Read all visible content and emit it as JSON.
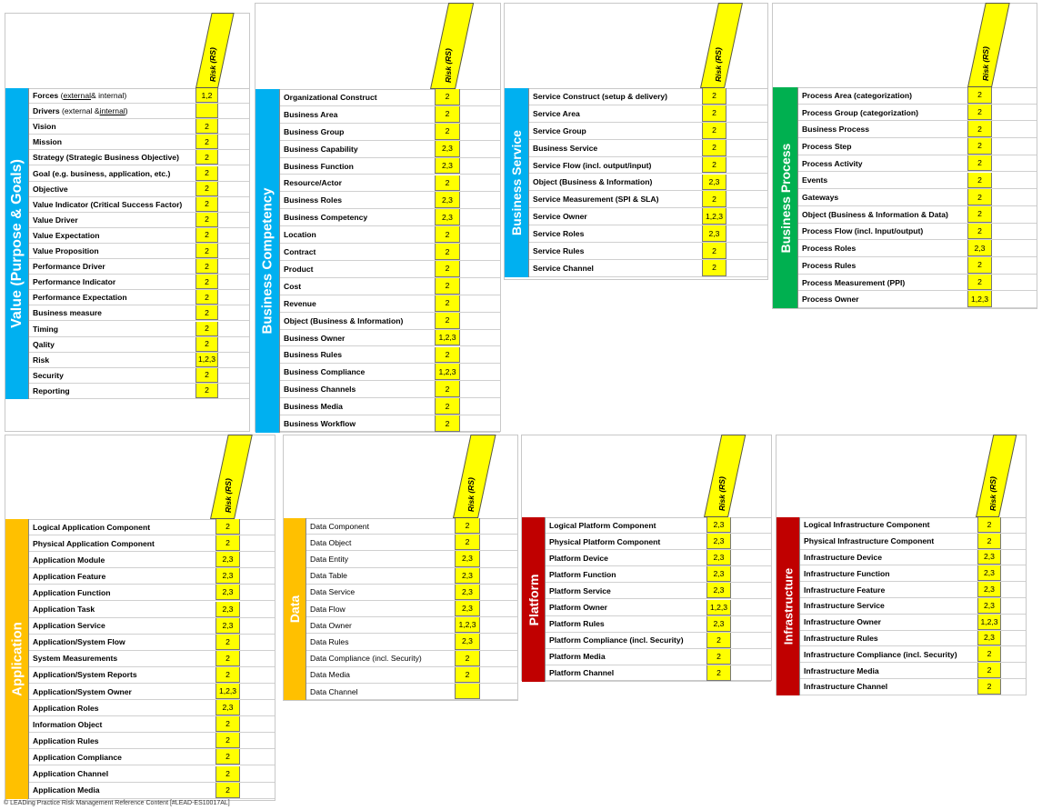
{
  "risk_label": "Risk (RS)",
  "footer": "© LEADing Practice Risk Management Reference Content [#LEAD-ES10017AL]",
  "colors": {
    "blue": "#00b0f0",
    "green": "#00b050",
    "orange": "#ffc000",
    "red": "#c00000",
    "yellow": "#ffff00"
  },
  "panels": [
    {
      "id": "value",
      "title": "Value (Purpose & Goals)",
      "color": "#00b0f0",
      "rows": [
        {
          "pre": "Forces (",
          "u": "external",
          "post": " & internal)",
          "risk": "1,2",
          "bold": true
        },
        {
          "pre": "Drivers (external & ",
          "u": "internal",
          "post": ")",
          "risk": "",
          "bold": true
        },
        {
          "name": "Vision",
          "risk": "2"
        },
        {
          "name": "Mission",
          "risk": "2"
        },
        {
          "name": "Strategy (Strategic Business Objective)",
          "risk": "2"
        },
        {
          "name": "Goal (e.g. business, application, etc.)",
          "risk": "2"
        },
        {
          "name": "Objective",
          "risk": "2"
        },
        {
          "name": "Value Indicator (Critical Success Factor)",
          "risk": "2"
        },
        {
          "name": "Value Driver",
          "risk": "2"
        },
        {
          "name": "Value Expectation",
          "risk": "2"
        },
        {
          "name": "Value Proposition",
          "risk": "2"
        },
        {
          "name": "Performance Driver",
          "risk": "2"
        },
        {
          "name": "Performance Indicator",
          "risk": "2"
        },
        {
          "name": "Performance Expectation",
          "risk": "2"
        },
        {
          "name": "Business measure",
          "risk": "2"
        },
        {
          "name": "Timing",
          "risk": "2"
        },
        {
          "name": "Qality",
          "risk": "2"
        },
        {
          "name": "Risk",
          "risk": "1,2,3"
        },
        {
          "name": "Security",
          "risk": "2"
        },
        {
          "name": "Reporting",
          "risk": "2"
        }
      ]
    },
    {
      "id": "competency",
      "title": "Business Competency",
      "color": "#00b0f0",
      "rows": [
        {
          "name": "Organizational Construct",
          "risk": "2"
        },
        {
          "name": "Business Area",
          "risk": "2"
        },
        {
          "name": "Business Group",
          "risk": "2"
        },
        {
          "name": "Business Capability",
          "risk": "2,3"
        },
        {
          "name": "Business Function",
          "risk": "2,3"
        },
        {
          "name": "Resource/Actor",
          "risk": "2"
        },
        {
          "name": "Business Roles",
          "risk": "2,3"
        },
        {
          "name": "Business Competency",
          "risk": "2,3"
        },
        {
          "name": "Location",
          "risk": "2"
        },
        {
          "name": "Contract",
          "risk": "2"
        },
        {
          "name": "Product",
          "risk": "2"
        },
        {
          "name": "Cost",
          "risk": "2"
        },
        {
          "name": "Revenue",
          "risk": "2"
        },
        {
          "name": "Object (Business & Information)",
          "risk": "2"
        },
        {
          "name": "Business Owner",
          "risk": "1,2,3"
        },
        {
          "name": "Business Rules",
          "risk": "2"
        },
        {
          "name": "Business Compliance",
          "risk": "1,2,3"
        },
        {
          "name": "Business Channels",
          "risk": "2"
        },
        {
          "name": "Business Media",
          "risk": "2"
        },
        {
          "name": "Business Workflow",
          "risk": "2"
        }
      ]
    },
    {
      "id": "service",
      "title": "Business Service",
      "color": "#00b0f0",
      "rows": [
        {
          "name": "Service Construct (setup & delivery)",
          "risk": "2"
        },
        {
          "name": "Service Area",
          "risk": "2"
        },
        {
          "name": "Service Group",
          "risk": "2"
        },
        {
          "name": "Business Service",
          "risk": "2"
        },
        {
          "name": "Service Flow (incl. output/input)",
          "risk": "2"
        },
        {
          "name": "Object (Business & Information)",
          "risk": "2,3"
        },
        {
          "name": "Service Measurement (SPI & SLA)",
          "risk": "2"
        },
        {
          "name": "Service Owner",
          "risk": "1,2,3"
        },
        {
          "name": "Service Roles",
          "risk": "2,3"
        },
        {
          "name": "Service Rules",
          "risk": "2"
        },
        {
          "name": "Service Channel",
          "risk": "2"
        }
      ]
    },
    {
      "id": "process",
      "title": "Business Process",
      "color": "#00b050",
      "rows": [
        {
          "name": "Process Area (categorization)",
          "risk": "2"
        },
        {
          "name": "Process Group (categorization)",
          "risk": "2"
        },
        {
          "name": "Business Process",
          "risk": "2"
        },
        {
          "name": "Process Step",
          "risk": "2"
        },
        {
          "name": "Process Activity",
          "risk": "2"
        },
        {
          "name": "Events",
          "risk": "2"
        },
        {
          "name": "Gateways",
          "risk": "2"
        },
        {
          "name": "Object (Business & Information & Data)",
          "risk": "2"
        },
        {
          "name": "Process Flow (incl. Input/output)",
          "risk": "2"
        },
        {
          "name": "Process Roles",
          "risk": "2,3"
        },
        {
          "name": "Process Rules",
          "risk": "2"
        },
        {
          "name": "Process Measurement (PPI)",
          "risk": "2"
        },
        {
          "name": "Process Owner",
          "risk": "1,2,3"
        }
      ]
    },
    {
      "id": "application",
      "title": "Application",
      "color": "#ffc000",
      "rows": [
        {
          "name": "Logical Application Component",
          "risk": "2"
        },
        {
          "name": "Physical Application Component",
          "risk": "2"
        },
        {
          "name": "Application Module",
          "risk": "2,3"
        },
        {
          "name": "Application Feature",
          "risk": "2,3"
        },
        {
          "name": "Application Function",
          "risk": "2,3"
        },
        {
          "name": "Application Task",
          "risk": "2,3"
        },
        {
          "name": "Application Service",
          "risk": "2,3"
        },
        {
          "name": "Application/System Flow",
          "risk": "2"
        },
        {
          "name": "System Measurements",
          "risk": "2"
        },
        {
          "name": "Application/System Reports",
          "risk": "2"
        },
        {
          "name": "Application/System Owner",
          "risk": "1,2,3"
        },
        {
          "name": "Application Roles",
          "risk": "2,3"
        },
        {
          "name": "Information Object",
          "risk": "2"
        },
        {
          "name": "Application Rules",
          "risk": "2"
        },
        {
          "name": "Application Compliance",
          "risk": "2"
        },
        {
          "name": "Application Channel",
          "risk": "2"
        },
        {
          "name": "Application Media",
          "risk": "2"
        }
      ]
    },
    {
      "id": "data",
      "title": "Data",
      "color": "#ffc000",
      "rows": [
        {
          "name": "Data Component",
          "risk": "2",
          "nb": true
        },
        {
          "name": "Data Object",
          "risk": "2",
          "nb": true
        },
        {
          "name": "Data Entity",
          "risk": "2,3",
          "nb": true
        },
        {
          "name": "Data Table",
          "risk": "2,3",
          "nb": true
        },
        {
          "name": "Data Service",
          "risk": "2,3",
          "nb": true
        },
        {
          "name": "Data Flow",
          "risk": "2,3",
          "nb": true
        },
        {
          "name": "Data Owner",
          "risk": "1,2,3",
          "nb": true
        },
        {
          "name": "Data Rules",
          "risk": "2,3",
          "nb": true
        },
        {
          "name": "Data Compliance (incl. Security)",
          "risk": "2",
          "nb": true
        },
        {
          "name": "Data Media",
          "risk": "2",
          "nb": true
        },
        {
          "name": "Data Channel",
          "risk": "",
          "nb": true
        }
      ]
    },
    {
      "id": "platform",
      "title": "Platform",
      "color": "#c00000",
      "rows": [
        {
          "name": "Logical Platform Component",
          "risk": "2,3"
        },
        {
          "name": "Physical Platform Component",
          "risk": "2,3"
        },
        {
          "name": "Platform Device",
          "risk": "2,3"
        },
        {
          "name": "Platform Function",
          "risk": "2,3"
        },
        {
          "name": "Platform Service",
          "risk": "2,3"
        },
        {
          "name": "Platform Owner",
          "risk": "1,2,3"
        },
        {
          "name": "Platform Rules",
          "risk": "2,3"
        },
        {
          "name": "Platform Compliance (incl. Security)",
          "risk": "2"
        },
        {
          "name": "Platform Media",
          "risk": "2"
        },
        {
          "name": "Platform Channel",
          "risk": "2"
        }
      ]
    },
    {
      "id": "infrastructure",
      "title": "Infrastructure",
      "color": "#c00000",
      "rows": [
        {
          "name": "Logical Infrastructure Component",
          "risk": "2"
        },
        {
          "name": "Physical Infrastructure Component",
          "risk": "2"
        },
        {
          "name": "Infrastructure Device",
          "risk": "2,3"
        },
        {
          "name": "Infrastructure Function",
          "risk": "2,3"
        },
        {
          "name": "Infrastructure Feature",
          "risk": "2,3"
        },
        {
          "name": "Infrastructure Service",
          "risk": "2,3"
        },
        {
          "name": "Infrastructure Owner",
          "risk": "1,2,3"
        },
        {
          "name": "Infrastructure Rules",
          "risk": "2,3"
        },
        {
          "name": "Infrastructure Compliance (incl. Security)",
          "risk": "2"
        },
        {
          "name": "Infrastructure Media",
          "risk": "2"
        },
        {
          "name": "Infrastructure Channel",
          "risk": "2"
        }
      ]
    }
  ]
}
